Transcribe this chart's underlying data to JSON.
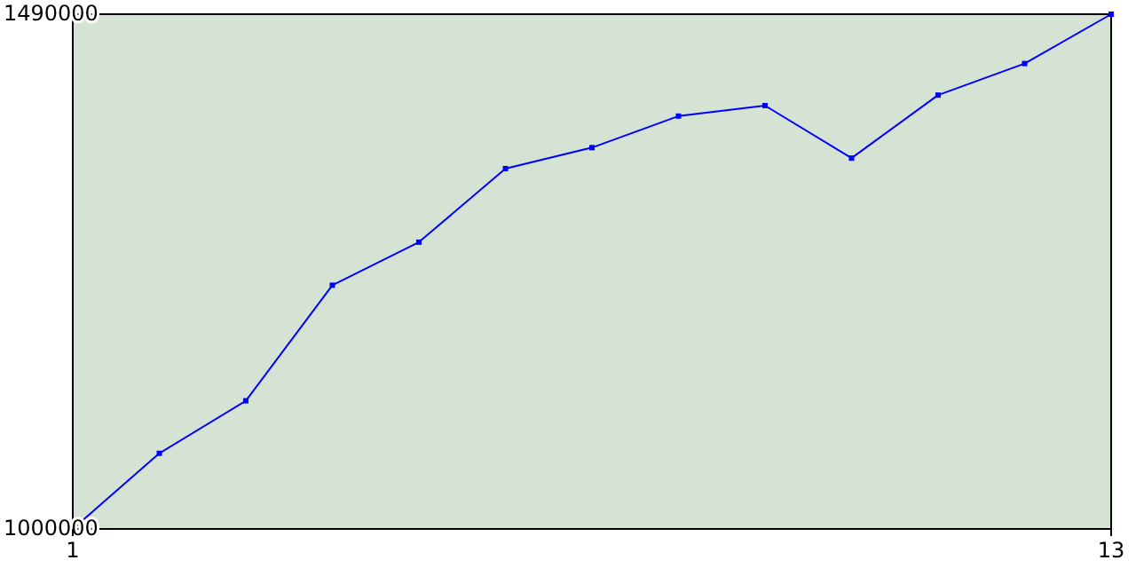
{
  "chart_data": {
    "type": "line",
    "x": [
      1,
      2,
      3,
      4,
      5,
      6,
      7,
      8,
      9,
      10,
      11,
      12,
      13
    ],
    "series": [
      {
        "color": "#0000ff",
        "values": [
          1000000,
          1072000,
          1122000,
          1232000,
          1273000,
          1343000,
          1363000,
          1393000,
          1403000,
          1353000,
          1413000,
          1443000,
          1490000
        ]
      }
    ],
    "xlim": [
      1,
      13
    ],
    "xticks": [
      1,
      13
    ],
    "ylim": [
      1000000,
      1490000
    ],
    "yticks": [
      1000000,
      1490000
    ],
    "grid": false,
    "marker": "square",
    "line_style": "solid"
  }
}
